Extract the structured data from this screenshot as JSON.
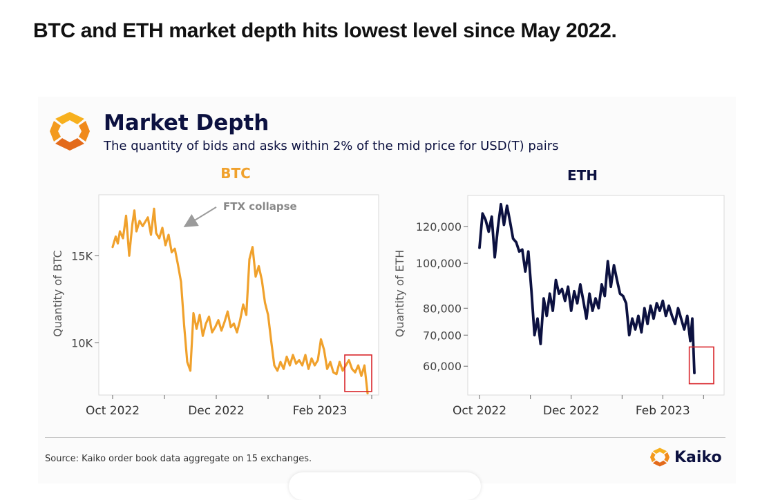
{
  "headline": "BTC and ETH market depth hits lowest level since May 2022.",
  "colors": {
    "btc_line": "#f0a12c",
    "eth_line": "#0c1140",
    "highlight_box": "#d9262b",
    "brand_orange": "#f39a1e",
    "title_navy": "#0c1140"
  },
  "chart_title": "Market Depth",
  "chart_subtitle": "The quantity of bids and asks within 2% of the mid price for USD(T) pairs",
  "source_note": "Source: Kaiko order book data aggregate on 15 exchanges.",
  "brand": {
    "name": "Kaiko",
    "icon": "kaiko-logo-icon"
  },
  "chart_data": [
    {
      "type": "line",
      "title": "BTC",
      "xlabel": "",
      "ylabel": "Quantity of BTC",
      "x_range": [
        0,
        25
      ],
      "ylim": [
        7000,
        18500
      ],
      "yticks": [
        {
          "value": 10000,
          "label": "10K"
        },
        {
          "value": 15000,
          "label": "15K"
        }
      ],
      "xticks": [
        {
          "value": 0,
          "label": "Oct 2022"
        },
        {
          "value": 5,
          "label": ""
        },
        {
          "value": 10,
          "label": "Dec 2022"
        },
        {
          "value": 15,
          "label": ""
        },
        {
          "value": 20,
          "label": "Feb 2023"
        },
        {
          "value": 25,
          "label": ""
        }
      ],
      "annotation": {
        "text": "FTX collapse",
        "points_to_x": 6.8,
        "points_to_y": 16600
      },
      "highlight_range": {
        "x": [
          22.4,
          25
        ],
        "y": [
          7200,
          9300
        ]
      },
      "series": [
        {
          "name": "BTC",
          "x": [
            0,
            0.3,
            0.5,
            0.7,
            1.0,
            1.3,
            1.6,
            1.9,
            2.1,
            2.3,
            2.6,
            2.9,
            3.1,
            3.4,
            3.7,
            4.0,
            4.2,
            4.5,
            4.8,
            5.1,
            5.4,
            5.7,
            6.0,
            6.3,
            6.6,
            6.9,
            7.2,
            7.5,
            7.8,
            8.1,
            8.4,
            8.7,
            9.0,
            9.3,
            9.6,
            9.9,
            10.2,
            10.5,
            10.8,
            11.1,
            11.4,
            11.7,
            12.0,
            12.3,
            12.6,
            12.9,
            13.2,
            13.5,
            13.8,
            14.1,
            14.4,
            14.7,
            15.0,
            15.3,
            15.6,
            15.9,
            16.2,
            16.5,
            16.8,
            17.1,
            17.4,
            17.7,
            18.0,
            18.3,
            18.6,
            18.9,
            19.2,
            19.5,
            19.8,
            20.1,
            20.4,
            20.7,
            21.0,
            21.3,
            21.6,
            21.9,
            22.2,
            22.5,
            22.8,
            23.1,
            23.4,
            23.7,
            24.0,
            24.3,
            24.6
          ],
          "values": [
            15500,
            16100,
            15700,
            16400,
            16000,
            17300,
            15000,
            16800,
            17600,
            16400,
            17000,
            16700,
            16900,
            17200,
            16200,
            17700,
            16300,
            16000,
            16600,
            15600,
            16200,
            15200,
            15400,
            14500,
            13500,
            11000,
            8900,
            8400,
            11700,
            10800,
            11600,
            10400,
            11100,
            11500,
            10600,
            10900,
            11300,
            10700,
            11200,
            11800,
            10900,
            11100,
            10600,
            11300,
            12200,
            11600,
            14800,
            15500,
            13800,
            14400,
            13600,
            12300,
            11600,
            10100,
            8700,
            8400,
            8900,
            8500,
            9200,
            8700,
            9300,
            8800,
            9000,
            8700,
            9300,
            8500,
            9100,
            8700,
            9000,
            10200,
            9600,
            8500,
            8900,
            8300,
            8200,
            8900,
            8400,
            8700,
            9000,
            8500,
            8300,
            8700,
            8100,
            8700,
            7100
          ]
        }
      ]
    },
    {
      "type": "line",
      "title": "ETH",
      "xlabel": "",
      "ylabel": "Quantity of ETH",
      "x_range": [
        0,
        23
      ],
      "ylim": [
        52000,
        140000
      ],
      "yscale": "log",
      "yticks": [
        {
          "value": 60000,
          "label": "60,000"
        },
        {
          "value": 70000,
          "label": "70,000"
        },
        {
          "value": 80000,
          "label": "80,000"
        },
        {
          "value": 100000,
          "label": "100,000"
        },
        {
          "value": 120000,
          "label": "120,000"
        }
      ],
      "xticks": [
        {
          "value": 0,
          "label": "Oct 2022"
        },
        {
          "value": 5,
          "label": ""
        },
        {
          "value": 9,
          "label": "Dec 2022"
        },
        {
          "value": 14,
          "label": ""
        },
        {
          "value": 18,
          "label": "Feb 2023"
        },
        {
          "value": 22,
          "label": ""
        }
      ],
      "highlight_range": {
        "x": [
          20.6,
          23
        ],
        "y": [
          55000,
          66000
        ]
      },
      "series": [
        {
          "name": "ETH",
          "x": [
            0,
            0.3,
            0.6,
            0.9,
            1.2,
            1.5,
            1.8,
            2.1,
            2.4,
            2.7,
            3.0,
            3.3,
            3.6,
            3.9,
            4.2,
            4.5,
            4.8,
            5.1,
            5.4,
            5.7,
            6.0,
            6.3,
            6.6,
            6.9,
            7.2,
            7.5,
            7.8,
            8.1,
            8.4,
            8.7,
            9.0,
            9.3,
            9.6,
            9.9,
            10.2,
            10.5,
            10.8,
            11.1,
            11.4,
            11.7,
            12.0,
            12.3,
            12.6,
            12.9,
            13.2,
            13.5,
            13.8,
            14.1,
            14.4,
            14.7,
            15.0,
            15.3,
            15.6,
            15.9,
            16.2,
            16.5,
            16.8,
            17.1,
            17.4,
            17.7,
            18.0,
            18.3,
            18.6,
            18.9,
            19.2,
            19.5,
            19.8,
            20.1,
            20.4,
            20.7,
            20.9,
            21.1
          ],
          "values": [
            108000,
            128000,
            124000,
            117000,
            126000,
            103000,
            119000,
            134000,
            121000,
            133000,
            123000,
            113000,
            111000,
            106000,
            107000,
            96000,
            106000,
            87000,
            70000,
            76000,
            67000,
            84000,
            77000,
            86000,
            79000,
            92000,
            86000,
            88000,
            83000,
            89000,
            79000,
            87000,
            82000,
            90000,
            83000,
            76000,
            86000,
            79000,
            84000,
            80000,
            90000,
            85000,
            101000,
            89000,
            99000,
            92000,
            86000,
            85000,
            82000,
            70000,
            76000,
            72000,
            77000,
            71000,
            80000,
            74000,
            81000,
            76000,
            82000,
            79000,
            83000,
            77000,
            81000,
            77000,
            74000,
            80000,
            76000,
            72000,
            77000,
            68000,
            76000,
            58000
          ]
        }
      ]
    }
  ]
}
